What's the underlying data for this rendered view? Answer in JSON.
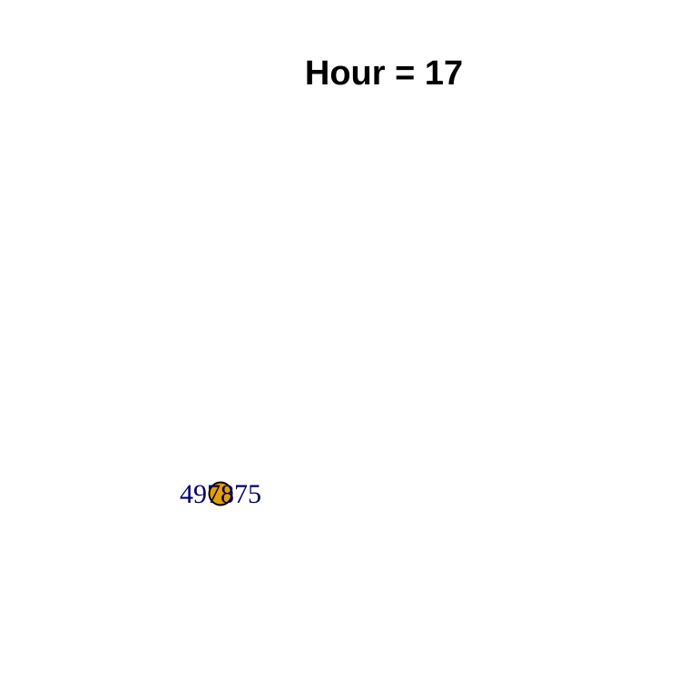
{
  "chart_data": {
    "type": "scatter",
    "title": "Hour = 17",
    "xlabel": "",
    "ylabel": "",
    "grid": false,
    "points": [
      {
        "label": "497875",
        "fill": "#e69f00",
        "label_color": "#00006e"
      }
    ]
  },
  "colors": {
    "background": "#ffffff",
    "point_stroke": "#000000",
    "title": "#000000"
  }
}
